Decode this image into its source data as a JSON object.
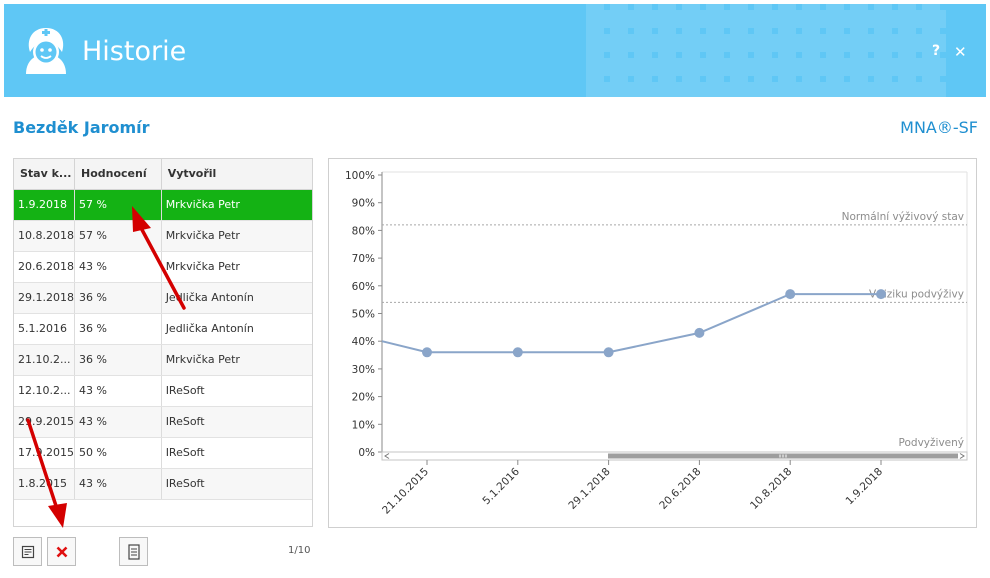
{
  "window": {
    "title": "Historie",
    "help_label": "?",
    "close_label": "✕",
    "icon": "nurse-face-icon",
    "accent_color": "#5fc7f5"
  },
  "patient": {
    "name": "Bezděk Jaromír",
    "test": "MNA®-SF"
  },
  "table": {
    "columns": [
      "Stav k...",
      "Hodnocení",
      "Vytvořil"
    ],
    "rows": [
      {
        "date": "1.9.2018",
        "score": "57 %",
        "author": "Mrkvička Petr",
        "selected": true
      },
      {
        "date": "10.8.2018",
        "score": "57 %",
        "author": "Mrkvička Petr"
      },
      {
        "date": "20.6.2018",
        "score": "43 %",
        "author": "Mrkvička Petr"
      },
      {
        "date": "29.1.2018",
        "score": "36 %",
        "author": "Jedlička Antonín"
      },
      {
        "date": "5.1.2016",
        "score": "36 %",
        "author": "Jedlička Antonín"
      },
      {
        "date": "21.10.2...",
        "score": "36 %",
        "author": "Mrkvička Petr"
      },
      {
        "date": "12.10.2...",
        "score": "43 %",
        "author": "IReSoft"
      },
      {
        "date": "29.9.2015",
        "score": "43 %",
        "author": "IReSoft"
      },
      {
        "date": "17.9.2015",
        "score": "50 %",
        "author": "IReSoft"
      },
      {
        "date": "1.8.2015",
        "score": "43 %",
        "author": "IReSoft"
      }
    ],
    "selected_color": "#14b214"
  },
  "toolbar": {
    "edit_icon": "edit-record-icon",
    "delete_icon": "delete-x-icon",
    "report_icon": "report-document-icon",
    "pager": "1/10"
  },
  "chart_data": {
    "type": "line",
    "x": [
      "21.10.2015",
      "5.1.2016",
      "29.1.2018",
      "20.6.2018",
      "10.8.2018",
      "1.9.2018"
    ],
    "values": [
      36,
      36,
      36,
      43,
      57,
      57
    ],
    "partial_left_value": 40,
    "yticks": [
      "0%",
      "10%",
      "20%",
      "30%",
      "40%",
      "50%",
      "60%",
      "70%",
      "80%",
      "90%",
      "100%"
    ],
    "ylim": [
      0,
      100
    ],
    "reference_lines": [
      {
        "label": "Normální výživový stav",
        "value": 82
      },
      {
        "label": "V riziku podvýživy",
        "value": 54
      },
      {
        "label": "Podvyživený",
        "value": 0
      }
    ],
    "line_color": "#8aa5c9",
    "grid": false
  }
}
